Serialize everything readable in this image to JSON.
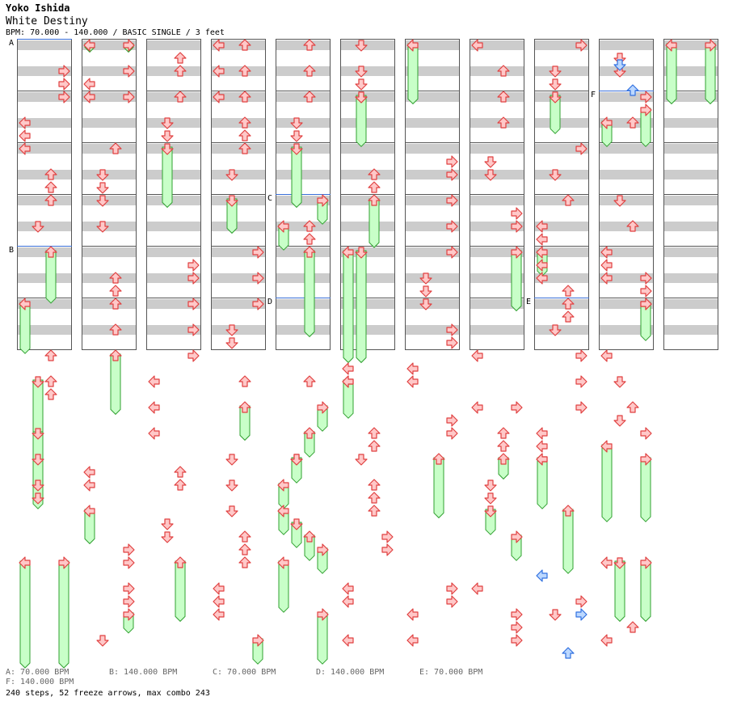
{
  "header": {
    "artist": "Yoko Ishida",
    "title": "White Destiny",
    "meta": "BPM: 70.000 - 140.000 / BASIC SINGLE / 3 feet"
  },
  "colors": {
    "arrow_fill": "#ffc8c8",
    "arrow_stroke": "#e04040",
    "freeze_fill": "#c8ffc8",
    "freeze_stroke": "#30a030",
    "shock_fill": "#bcd8ff",
    "shock_stroke": "#3070e0",
    "band_gray": "#cccccc",
    "bpm_line": "#3a6fd8"
  },
  "chart_data": {
    "type": "step-chart",
    "lanes": [
      "left",
      "down",
      "up",
      "right"
    ],
    "columns": 11,
    "measures_per_column": 6,
    "markers": [
      {
        "label": "A",
        "column": 0,
        "beat": 0
      },
      {
        "label": "B",
        "column": 0,
        "beat": 16
      },
      {
        "label": "C",
        "column": 4,
        "beat": 12
      },
      {
        "label": "D",
        "column": 4,
        "beat": 20
      },
      {
        "label": "E",
        "column": 8,
        "beat": 20
      },
      {
        "label": "F",
        "column": 9,
        "beat": 4
      }
    ],
    "freezes": [
      {
        "c": 0,
        "lane": 2,
        "b0": 16,
        "b1": 19.8
      },
      {
        "c": 0,
        "lane": 0,
        "b0": 20,
        "b1": 23.7
      },
      {
        "c": 0,
        "lane": 1,
        "b0": 26,
        "b1": 31.8
      },
      {
        "c": 0,
        "lane": 1,
        "b0": 30,
        "b1": 35.7
      },
      {
        "c": 0,
        "lane": 0,
        "b0": 40,
        "b1": 48
      },
      {
        "c": 0,
        "lane": 3,
        "b0": 40,
        "b1": 48
      },
      {
        "c": 1,
        "lane": 0,
        "b0": 0,
        "b1": 0.4
      },
      {
        "c": 1,
        "lane": 3,
        "b0": 0,
        "b1": 0.4
      },
      {
        "c": 1,
        "lane": 2,
        "b0": 24,
        "b1": 28.4
      },
      {
        "c": 1,
        "lane": 0,
        "b0": 36,
        "b1": 38.4
      },
      {
        "c": 1,
        "lane": 3,
        "b0": 44,
        "b1": 45.3
      },
      {
        "c": 2,
        "lane": 1,
        "b0": 8,
        "b1": 12.4
      },
      {
        "c": 2,
        "lane": 2,
        "b0": 40,
        "b1": 44.4
      },
      {
        "c": 3,
        "lane": 1,
        "b0": 12,
        "b1": 14.4
      },
      {
        "c": 3,
        "lane": 2,
        "b0": 28,
        "b1": 30.4
      },
      {
        "c": 3,
        "lane": 3,
        "b0": 46,
        "b1": 47.7
      },
      {
        "c": 4,
        "lane": 1,
        "b0": 8,
        "b1": 12.4
      },
      {
        "c": 4,
        "lane": 2,
        "b0": 16,
        "b1": 22.4
      },
      {
        "c": 4,
        "lane": 3,
        "b0": 12,
        "b1": 13.7
      },
      {
        "c": 4,
        "lane": 0,
        "b0": 14,
        "b1": 15.7
      },
      {
        "c": 4,
        "lane": 3,
        "b0": 28,
        "b1": 29.7
      },
      {
        "c": 4,
        "lane": 2,
        "b0": 30,
        "b1": 31.7
      },
      {
        "c": 4,
        "lane": 1,
        "b0": 32,
        "b1": 33.7
      },
      {
        "c": 4,
        "lane": 0,
        "b0": 34,
        "b1": 35.7
      },
      {
        "c": 4,
        "lane": 0,
        "b0": 36,
        "b1": 37.7
      },
      {
        "c": 4,
        "lane": 1,
        "b0": 37,
        "b1": 38.7
      },
      {
        "c": 4,
        "lane": 2,
        "b0": 38,
        "b1": 39.7
      },
      {
        "c": 4,
        "lane": 3,
        "b0": 39,
        "b1": 40.7
      },
      {
        "c": 4,
        "lane": 0,
        "b0": 40,
        "b1": 43.7
      },
      {
        "c": 4,
        "lane": 3,
        "b0": 44,
        "b1": 47.7
      },
      {
        "c": 5,
        "lane": 1,
        "b0": 4,
        "b1": 7.7
      },
      {
        "c": 5,
        "lane": 2,
        "b0": 12,
        "b1": 15.5
      },
      {
        "c": 5,
        "lane": 0,
        "b0": 16,
        "b1": 24.4
      },
      {
        "c": 5,
        "lane": 1,
        "b0": 16,
        "b1": 24.4
      },
      {
        "c": 5,
        "lane": 0,
        "b0": 26,
        "b1": 28.7
      },
      {
        "c": 6,
        "lane": 0,
        "b0": 0,
        "b1": 4.4
      },
      {
        "c": 6,
        "lane": 2,
        "b0": 32,
        "b1": 36.4
      },
      {
        "c": 7,
        "lane": 3,
        "b0": 16,
        "b1": 20.4
      },
      {
        "c": 7,
        "lane": 2,
        "b0": 32,
        "b1": 33.4
      },
      {
        "c": 7,
        "lane": 1,
        "b0": 36,
        "b1": 37.7
      },
      {
        "c": 7,
        "lane": 3,
        "b0": 38,
        "b1": 39.7
      },
      {
        "c": 8,
        "lane": 1,
        "b0": 4,
        "b1": 6.7
      },
      {
        "c": 8,
        "lane": 0,
        "b0": 16,
        "b1": 17.7
      },
      {
        "c": 8,
        "lane": 0,
        "b0": 32,
        "b1": 35.7
      },
      {
        "c": 8,
        "lane": 2,
        "b0": 36,
        "b1": 40.7
      },
      {
        "c": 9,
        "lane": 0,
        "b0": 6,
        "b1": 7.7
      },
      {
        "c": 9,
        "lane": 3,
        "b0": 5,
        "b1": 7.7
      },
      {
        "c": 9,
        "lane": 3,
        "b0": 20,
        "b1": 22.7
      },
      {
        "c": 9,
        "lane": 0,
        "b0": 31,
        "b1": 36.7
      },
      {
        "c": 9,
        "lane": 3,
        "b0": 32,
        "b1": 36.7
      },
      {
        "c": 9,
        "lane": 1,
        "b0": 40,
        "b1": 44.4
      },
      {
        "c": 9,
        "lane": 3,
        "b0": 40,
        "b1": 44.4
      },
      {
        "c": 10,
        "lane": 0,
        "b0": 0,
        "b1": 4.4
      },
      {
        "c": 10,
        "lane": 3,
        "b0": 0,
        "b1": 4.4
      }
    ],
    "arrows": [
      {
        "c": 0,
        "lane": 3,
        "b": [
          2,
          3,
          4
        ]
      },
      {
        "c": 0,
        "lane": 0,
        "b": [
          6,
          7,
          8
        ]
      },
      {
        "c": 0,
        "lane": 2,
        "b": [
          10,
          11,
          12
        ]
      },
      {
        "c": 0,
        "lane": 1,
        "b": [
          14
        ]
      },
      {
        "c": 0,
        "lane": 2,
        "b": [
          24,
          26,
          27
        ]
      },
      {
        "c": 0,
        "lane": 1,
        "b": [
          32,
          34,
          35
        ]
      },
      {
        "c": 1,
        "lane": 3,
        "b": [
          2,
          4
        ]
      },
      {
        "c": 1,
        "lane": 0,
        "b": [
          3,
          4
        ]
      },
      {
        "c": 1,
        "lane": 2,
        "b": [
          8,
          18,
          19,
          20,
          22
        ]
      },
      {
        "c": 1,
        "lane": 1,
        "b": [
          10,
          11,
          12,
          14
        ]
      },
      {
        "c": 1,
        "lane": 0,
        "b": [
          33,
          34
        ]
      },
      {
        "c": 1,
        "lane": 3,
        "b": [
          39,
          40,
          42,
          43
        ]
      },
      {
        "c": 1,
        "lane": 1,
        "b": [
          46
        ]
      },
      {
        "c": 2,
        "lane": 2,
        "b": [
          1,
          2,
          4
        ]
      },
      {
        "c": 2,
        "lane": 1,
        "b": [
          6,
          7
        ]
      },
      {
        "c": 2,
        "lane": 3,
        "b": [
          17,
          18,
          20,
          22,
          24
        ]
      },
      {
        "c": 2,
        "lane": 0,
        "b": [
          26,
          28,
          30
        ]
      },
      {
        "c": 2,
        "lane": 2,
        "b": [
          33,
          34
        ]
      },
      {
        "c": 2,
        "lane": 1,
        "b": [
          37,
          38
        ]
      },
      {
        "c": 3,
        "lane": 0,
        "b": [
          0,
          2,
          4
        ]
      },
      {
        "c": 3,
        "lane": 2,
        "b": [
          0,
          2,
          4,
          6,
          7,
          8
        ]
      },
      {
        "c": 3,
        "lane": 1,
        "b": [
          10
        ]
      },
      {
        "c": 3,
        "lane": 3,
        "b": [
          16,
          18,
          20
        ]
      },
      {
        "c": 3,
        "lane": 1,
        "b": [
          22,
          23
        ]
      },
      {
        "c": 3,
        "lane": 2,
        "b": [
          26
        ]
      },
      {
        "c": 3,
        "lane": 1,
        "b": [
          32,
          34,
          36
        ]
      },
      {
        "c": 3,
        "lane": 2,
        "b": [
          38,
          39,
          40
        ]
      },
      {
        "c": 3,
        "lane": 0,
        "b": [
          42,
          43,
          44
        ]
      },
      {
        "c": 4,
        "lane": 2,
        "b": [
          0,
          2,
          4
        ]
      },
      {
        "c": 4,
        "lane": 1,
        "b": [
          6,
          7
        ]
      },
      {
        "c": 4,
        "lane": 2,
        "b": [
          14,
          15
        ]
      },
      {
        "c": 4,
        "lane": 2,
        "b": [
          26
        ]
      },
      {
        "c": 4,
        "lane": 1,
        "b": [
          32
        ]
      },
      {
        "c": 5,
        "lane": 1,
        "b": [
          0,
          2,
          3,
          4
        ]
      },
      {
        "c": 5,
        "lane": 2,
        "b": [
          10,
          11
        ]
      },
      {
        "c": 5,
        "lane": 0,
        "b": [
          25,
          26
        ]
      },
      {
        "c": 5,
        "lane": 2,
        "b": [
          30,
          31
        ]
      },
      {
        "c": 5,
        "lane": 1,
        "b": [
          32
        ]
      },
      {
        "c": 5,
        "lane": 2,
        "b": [
          34,
          35,
          36
        ]
      },
      {
        "c": 5,
        "lane": 3,
        "b": [
          38,
          39
        ]
      },
      {
        "c": 5,
        "lane": 0,
        "b": [
          42,
          43,
          46
        ]
      },
      {
        "c": 6,
        "lane": 3,
        "b": [
          9,
          10,
          12,
          14,
          16
        ]
      },
      {
        "c": 6,
        "lane": 1,
        "b": [
          18,
          19,
          20
        ]
      },
      {
        "c": 6,
        "lane": 3,
        "b": [
          22,
          23,
          29,
          30
        ]
      },
      {
        "c": 6,
        "lane": 0,
        "b": [
          25,
          26,
          44,
          46
        ]
      },
      {
        "c": 6,
        "lane": 3,
        "b": [
          42,
          43
        ]
      },
      {
        "c": 7,
        "lane": 0,
        "b": [
          0,
          24,
          28,
          42
        ]
      },
      {
        "c": 7,
        "lane": 2,
        "b": [
          2,
          4,
          6
        ]
      },
      {
        "c": 7,
        "lane": 1,
        "b": [
          9,
          10
        ]
      },
      {
        "c": 7,
        "lane": 3,
        "b": [
          13,
          14
        ]
      },
      {
        "c": 7,
        "lane": 2,
        "b": [
          30,
          31
        ]
      },
      {
        "c": 7,
        "lane": 1,
        "b": [
          34,
          35
        ]
      },
      {
        "c": 7,
        "lane": 3,
        "b": [
          28,
          44,
          45,
          46
        ]
      },
      {
        "c": 8,
        "lane": 3,
        "b": [
          0,
          8,
          24,
          26,
          28
        ]
      },
      {
        "c": 8,
        "lane": 1,
        "b": [
          2,
          3,
          10,
          22,
          44
        ]
      },
      {
        "c": 8,
        "lane": 2,
        "b": [
          12,
          19,
          20,
          21
        ]
      },
      {
        "c": 8,
        "lane": 0,
        "b": [
          14,
          15,
          17,
          18,
          30,
          31,
          32
        ]
      },
      {
        "c": 8,
        "lane": 3,
        "b": [
          43
        ]
      },
      {
        "c": 9,
        "lane": 1,
        "b": [
          1,
          2,
          12,
          26
        ]
      },
      {
        "c": 9,
        "lane": 0,
        "b": [
          16,
          17,
          18,
          24,
          40,
          46
        ]
      },
      {
        "c": 9,
        "lane": 2,
        "b": [
          6,
          14,
          28,
          45
        ]
      },
      {
        "c": 9,
        "lane": 3,
        "b": [
          4,
          18,
          19,
          20,
          30
        ]
      },
      {
        "c": 9,
        "lane": 1,
        "b": [
          29
        ]
      }
    ],
    "shocks": [
      {
        "c": 9,
        "lane": 1,
        "b": 1.5
      },
      {
        "c": 9,
        "lane": 2,
        "b": 3.5
      },
      {
        "c": 8,
        "lane": 0,
        "b": 41
      },
      {
        "c": 8,
        "lane": 3,
        "b": 44
      },
      {
        "c": 8,
        "lane": 2,
        "b": 47
      }
    ]
  },
  "footer": {
    "bpm_a": "A: 70.000 BPM",
    "bpm_b": "B: 140.000 BPM",
    "bpm_c": "C: 70.000 BPM",
    "bpm_d": "D: 140.000 BPM",
    "bpm_e": "E: 70.000 BPM",
    "bpm_f": "F: 140.000 BPM",
    "stats": "240 steps, 52 freeze arrows, max combo 243"
  }
}
